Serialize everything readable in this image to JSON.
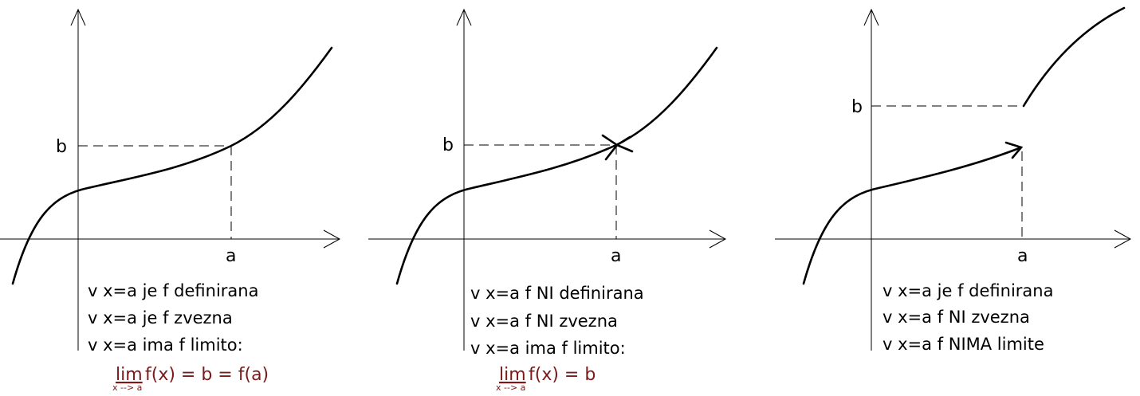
{
  "panels": [
    {
      "label_b": "b",
      "label_a": "a",
      "lines": [
        "v x=a je f definirana",
        "v x=a je f zvezna",
        "v x=a ima f limito:"
      ],
      "limit": {
        "lim": "lim",
        "sub": "x --> a",
        "expr": "f(x) = b = f(a)"
      }
    },
    {
      "label_b": "b",
      "label_a": "a",
      "lines": [
        "v x=a f NI definirana",
        "v x=a f NI zvezna",
        "v x=a ima f limito:"
      ],
      "limit": {
        "lim": "lim",
        "sub": "x --> a",
        "expr": "f(x) = b"
      }
    },
    {
      "label_b": "b",
      "label_a": "a",
      "lines": [
        "v x=a je f definirana",
        "v x=a f NI zvezna",
        "v x=a f NIMA limite"
      ]
    }
  ],
  "colors": {
    "ink": "#000000",
    "limit": "#7a1a1a"
  }
}
